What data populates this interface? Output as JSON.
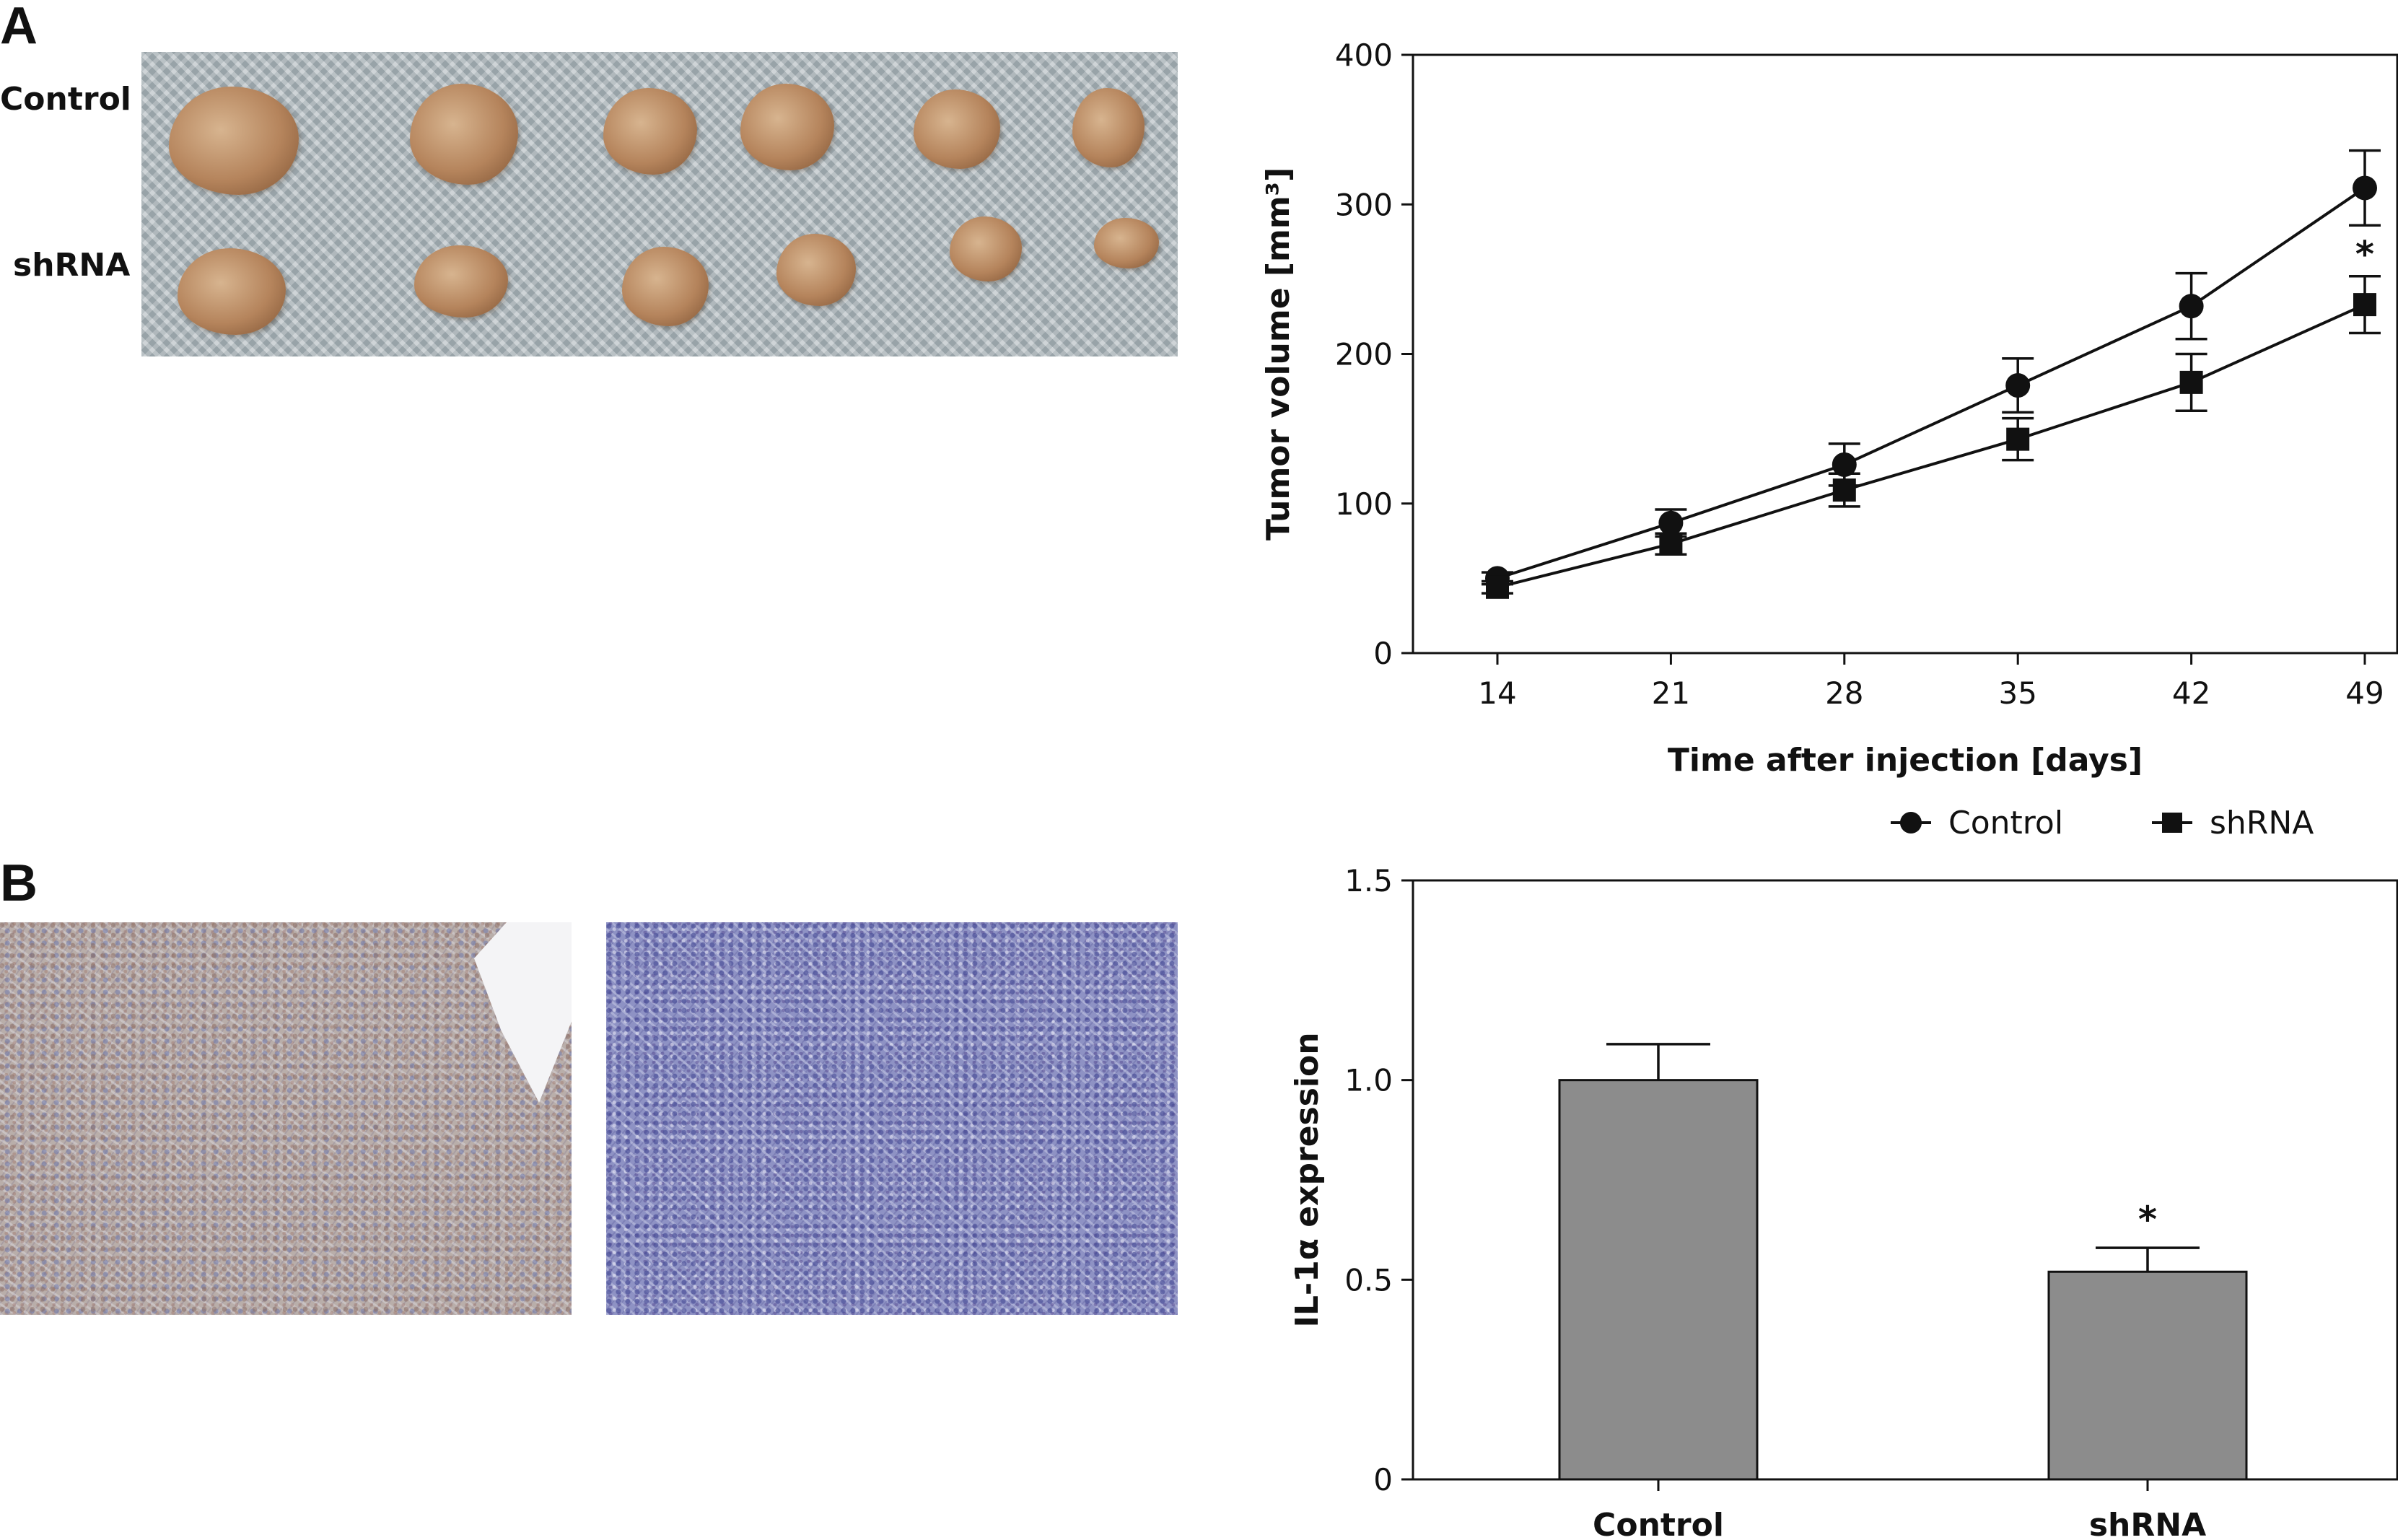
{
  "panels": {
    "a_label": "A",
    "b_label": "B",
    "photo_rows": [
      "Control",
      "shRNA"
    ]
  },
  "chart_data": [
    {
      "type": "line",
      "xlabel": "Time after injection [days]",
      "ylabel": "Tumor volume [mm³]",
      "x": [
        14,
        21,
        28,
        35,
        42,
        49
      ],
      "xticks": [
        "14",
        "21",
        "28",
        "35",
        "42",
        "49"
      ],
      "ylim": [
        0,
        400
      ],
      "yticks": [
        "0",
        "100",
        "200",
        "300",
        "400"
      ],
      "grid": false,
      "legend_position": "bottom",
      "series": [
        {
          "name": "Control",
          "marker": "circle",
          "values": [
            50,
            87,
            126,
            179,
            232,
            311
          ],
          "errors": [
            4,
            9,
            14,
            18,
            22,
            25
          ]
        },
        {
          "name": "shRNA",
          "marker": "square",
          "values": [
            44,
            73,
            109,
            143,
            181,
            233
          ],
          "errors": [
            4,
            7,
            11,
            14,
            19,
            19
          ]
        }
      ],
      "annotations": [
        {
          "text": "*",
          "x": 49
        }
      ]
    },
    {
      "type": "bar",
      "categories": [
        "Control",
        "shRNA"
      ],
      "values": [
        1.0,
        0.52
      ],
      "errors": [
        0.09,
        0.06
      ],
      "ylabel": "IL-1α expression",
      "ylim": [
        0,
        1.5
      ],
      "yticks": [
        "0",
        "0.5",
        "1.0",
        "1.5"
      ],
      "grid": false,
      "bar_color": "#8c8c8c",
      "annotations": [
        {
          "text": "*",
          "category": "shRNA"
        }
      ]
    }
  ]
}
